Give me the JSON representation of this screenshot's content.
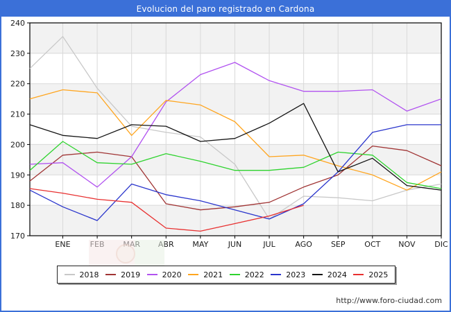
{
  "title": "Evolucion del paro registrado en Cardona",
  "footer": {
    "url": "http://www.foro-ciudad.com"
  },
  "colors": {
    "frame_blue": "#3b70d8",
    "grid": "#d9d9d9",
    "band": "#f2f2f2",
    "axis": "#000000",
    "tick_text": "#1a1a1a"
  },
  "chart_data": {
    "type": "line",
    "title": "Evolucion del paro registrado en Cardona",
    "x_tick_labels": [
      "ENE",
      "FEB",
      "MAR",
      "ABR",
      "MAY",
      "JUN",
      "JUL",
      "AGO",
      "SEP",
      "OCT",
      "NOV",
      "DIC"
    ],
    "ylim": [
      170,
      240
    ],
    "y_ticks": [
      170,
      180,
      190,
      200,
      210,
      220,
      230,
      240
    ],
    "grid": true,
    "legend_position": "bottom",
    "x_layout": "first value of each series sits on the left axis edge, the rest on the month ticks",
    "series": [
      {
        "name": "2018",
        "color": "#c8c8c8",
        "values": [
          225,
          235.5,
          218.5,
          206,
          204,
          202.5,
          193.5,
          175.5,
          183,
          182.5,
          181.5,
          185,
          187
        ]
      },
      {
        "name": "2019",
        "color": "#a03434",
        "values": [
          188,
          196.5,
          197.5,
          196,
          180.5,
          178.5,
          179.5,
          181,
          186,
          190,
          199.5,
          198,
          193
        ]
      },
      {
        "name": "2020",
        "color": "#b152f0",
        "values": [
          193.5,
          194,
          186,
          196,
          214,
          223,
          227,
          221,
          217.5,
          217.5,
          218,
          211,
          215
        ]
      },
      {
        "name": "2021",
        "color": "#ffa51e",
        "values": [
          215,
          218,
          217,
          203,
          214.5,
          213,
          207.5,
          196,
          196.5,
          193,
          190,
          185,
          191
        ]
      },
      {
        "name": "2022",
        "color": "#2ed32e",
        "values": [
          191.5,
          201,
          194,
          193.5,
          197,
          194.5,
          191.5,
          191.5,
          192.5,
          197.5,
          196.5,
          187.5,
          185.5
        ]
      },
      {
        "name": "2023",
        "color": "#2a35cc",
        "values": [
          185,
          179.5,
          175,
          187,
          183.5,
          181.5,
          178.5,
          175.5,
          180.5,
          191,
          204,
          206.5,
          206.5
        ]
      },
      {
        "name": "2024",
        "color": "#141414",
        "values": [
          206.5,
          203,
          202,
          206.5,
          206,
          201,
          202,
          207,
          213.5,
          191,
          195.5,
          186.5,
          185
        ]
      },
      {
        "name": "2025",
        "color": "#e83030",
        "values": [
          185.5,
          184,
          182,
          181,
          172.5,
          171.5,
          174,
          176.5,
          180
        ]
      }
    ]
  }
}
